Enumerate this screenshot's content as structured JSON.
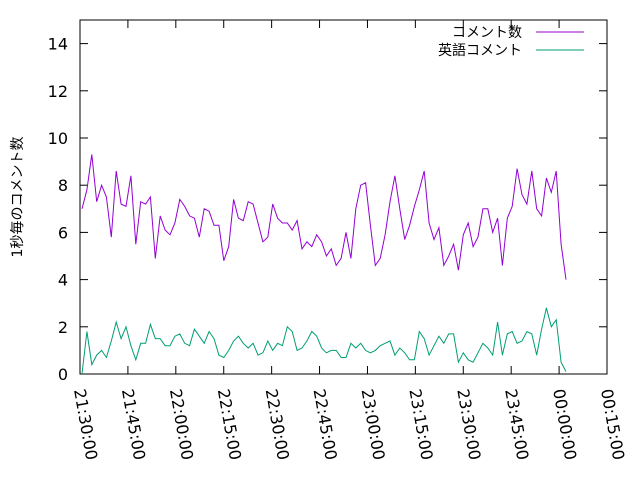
{
  "chart_data": {
    "type": "line",
    "xlabel": "",
    "ylabel": "1秒毎のコメント数",
    "ylim": [
      0,
      15
    ],
    "yticks": [
      "0",
      "2",
      "4",
      "6",
      "8",
      "10",
      "12",
      "14"
    ],
    "xticks": [
      "21:30:00",
      "21:45:00",
      "22:00:00",
      "22:15:00",
      "22:30:00",
      "22:45:00",
      "23:00:00",
      "23:15:00",
      "23:30:00",
      "23:45:00",
      "00:00:00",
      "00:15:00"
    ],
    "x_interval_minutes": 15,
    "legend_position": "top-right",
    "grid": false,
    "series": [
      {
        "name": "コメント数",
        "color": "#9400d3",
        "values": [
          7.0,
          7.8,
          9.3,
          7.3,
          8.0,
          7.5,
          5.8,
          8.6,
          7.2,
          7.1,
          8.4,
          5.5,
          7.3,
          7.2,
          7.5,
          4.9,
          6.7,
          6.1,
          5.9,
          6.4,
          7.4,
          7.1,
          6.7,
          6.6,
          5.8,
          7.0,
          6.9,
          6.3,
          6.3,
          4.8,
          5.4,
          7.4,
          6.6,
          6.5,
          7.3,
          7.2,
          6.4,
          5.6,
          5.8,
          7.2,
          6.6,
          6.4,
          6.4,
          6.1,
          6.5,
          5.3,
          5.6,
          5.4,
          5.9,
          5.6,
          5.0,
          5.3,
          4.6,
          4.9,
          6.0,
          4.9,
          7.0,
          8.0,
          8.1,
          6.3,
          4.6,
          4.9,
          5.9,
          7.3,
          8.4,
          7.0,
          5.7,
          6.3,
          7.1,
          7.8,
          8.6,
          6.4,
          5.7,
          6.2,
          4.6,
          5.0,
          5.5,
          4.4,
          5.9,
          6.4,
          5.4,
          5.8,
          7.0,
          7.0,
          6.0,
          6.6,
          4.6,
          6.6,
          7.1,
          8.7,
          7.6,
          7.2,
          8.6,
          7.0,
          6.7,
          8.3,
          7.7,
          8.6,
          5.5,
          4.0
        ]
      },
      {
        "name": "英語コメント",
        "color": "#009e73",
        "values": [
          0.0,
          1.8,
          0.4,
          0.8,
          1.0,
          0.7,
          1.4,
          2.2,
          1.5,
          2.0,
          1.2,
          0.6,
          1.3,
          1.3,
          2.1,
          1.5,
          1.5,
          1.2,
          1.2,
          1.6,
          1.7,
          1.3,
          1.2,
          1.9,
          1.6,
          1.3,
          1.8,
          1.5,
          0.8,
          0.7,
          1.0,
          1.4,
          1.6,
          1.3,
          1.1,
          1.3,
          0.8,
          0.9,
          1.4,
          1.0,
          1.3,
          1.2,
          2.0,
          1.8,
          1.0,
          1.1,
          1.4,
          1.8,
          1.6,
          1.1,
          0.9,
          1.0,
          1.0,
          0.7,
          0.7,
          1.3,
          1.1,
          1.3,
          1.0,
          0.9,
          1.0,
          1.2,
          1.3,
          1.4,
          0.8,
          1.1,
          0.9,
          0.6,
          0.6,
          1.8,
          1.5,
          0.8,
          1.2,
          1.6,
          1.3,
          1.7,
          1.7,
          0.5,
          0.9,
          0.6,
          0.5,
          0.9,
          1.3,
          1.1,
          0.8,
          2.2,
          0.8,
          1.7,
          1.8,
          1.3,
          1.4,
          1.8,
          1.7,
          0.8,
          1.9,
          2.8,
          2.0,
          2.3,
          0.5,
          0.1
        ]
      }
    ]
  }
}
